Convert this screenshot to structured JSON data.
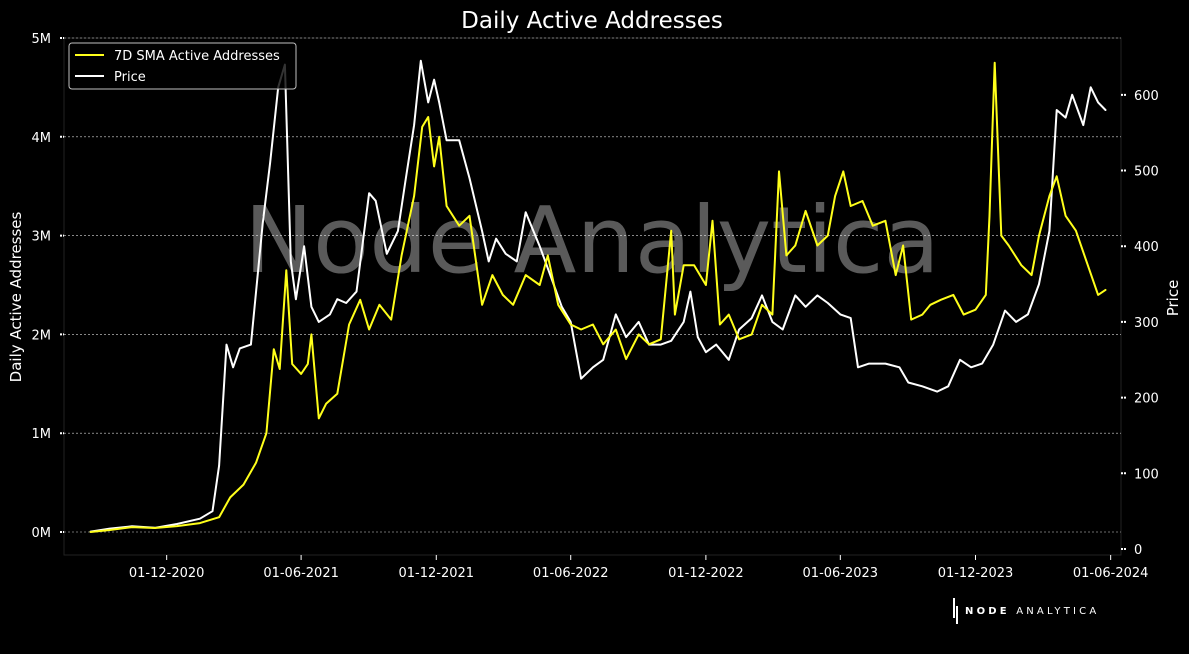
{
  "chart_data": {
    "type": "line",
    "title": "Daily Active Addresses",
    "ylabel": "Daily Active Addresses",
    "y2label": "Price",
    "watermark": "Node Analytica",
    "brand": {
      "bold": "NODE",
      "light": "ANALYTICA"
    },
    "xticks": [
      "01-12-2020",
      "01-06-2021",
      "01-12-2021",
      "01-06-2022",
      "01-12-2022",
      "01-06-2023",
      "01-12-2023",
      "01-06-2024"
    ],
    "yticks": [
      "0M",
      "1M",
      "2M",
      "3M",
      "4M",
      "5M"
    ],
    "y2ticks": [
      "0",
      "100",
      "200",
      "300",
      "400",
      "500",
      "600"
    ],
    "ylim": [
      0,
      5000000
    ],
    "y2lim": [
      0,
      650
    ],
    "xlim": [
      "2020-07-15",
      "2024-06-15"
    ],
    "grid": true,
    "legend": "top-left",
    "colors": {
      "series_addresses": "#ffff1a",
      "series_price": "#ffffff",
      "background": "#000000",
      "grid": "#ffffff"
    },
    "series": [
      {
        "name": "7D SMA Active Addresses",
        "axis": "left",
        "color": "#ffff1a",
        "points": [
          [
            "2020-08-20",
            0
          ],
          [
            "2020-09-15",
            20000
          ],
          [
            "2020-10-15",
            50000
          ],
          [
            "2020-11-15",
            40000
          ],
          [
            "2020-12-15",
            60000
          ],
          [
            "2021-01-15",
            90000
          ],
          [
            "2021-02-10",
            150000
          ],
          [
            "2021-02-25",
            350000
          ],
          [
            "2021-03-15",
            480000
          ],
          [
            "2021-04-01",
            700000
          ],
          [
            "2021-04-15",
            1000000
          ],
          [
            "2021-04-25",
            1850000
          ],
          [
            "2021-05-03",
            1650000
          ],
          [
            "2021-05-12",
            2650000
          ],
          [
            "2021-05-20",
            1700000
          ],
          [
            "2021-06-01",
            1600000
          ],
          [
            "2021-06-10",
            1700000
          ],
          [
            "2021-06-15",
            2000000
          ],
          [
            "2021-06-25",
            1150000
          ],
          [
            "2021-07-05",
            1300000
          ],
          [
            "2021-07-20",
            1400000
          ],
          [
            "2021-08-05",
            2100000
          ],
          [
            "2021-08-20",
            2350000
          ],
          [
            "2021-09-01",
            2050000
          ],
          [
            "2021-09-15",
            2300000
          ],
          [
            "2021-10-01",
            2150000
          ],
          [
            "2021-10-15",
            2800000
          ],
          [
            "2021-11-01",
            3400000
          ],
          [
            "2021-11-12",
            4100000
          ],
          [
            "2021-11-20",
            4200000
          ],
          [
            "2021-11-28",
            3700000
          ],
          [
            "2021-12-05",
            4000000
          ],
          [
            "2021-12-15",
            3300000
          ],
          [
            "2022-01-01",
            3100000
          ],
          [
            "2022-01-15",
            3200000
          ],
          [
            "2022-02-01",
            2300000
          ],
          [
            "2022-02-15",
            2600000
          ],
          [
            "2022-03-01",
            2400000
          ],
          [
            "2022-03-15",
            2300000
          ],
          [
            "2022-04-01",
            2600000
          ],
          [
            "2022-04-20",
            2500000
          ],
          [
            "2022-05-01",
            2800000
          ],
          [
            "2022-05-15",
            2300000
          ],
          [
            "2022-06-01",
            2100000
          ],
          [
            "2022-06-15",
            2050000
          ],
          [
            "2022-07-01",
            2100000
          ],
          [
            "2022-07-15",
            1900000
          ],
          [
            "2022-08-01",
            2050000
          ],
          [
            "2022-08-15",
            1750000
          ],
          [
            "2022-09-01",
            2000000
          ],
          [
            "2022-09-15",
            1900000
          ],
          [
            "2022-10-01",
            1950000
          ],
          [
            "2022-10-15",
            3050000
          ],
          [
            "2022-10-20",
            2200000
          ],
          [
            "2022-11-01",
            2700000
          ],
          [
            "2022-11-15",
            2700000
          ],
          [
            "2022-12-01",
            2500000
          ],
          [
            "2022-12-10",
            3150000
          ],
          [
            "2022-12-20",
            2100000
          ],
          [
            "2023-01-01",
            2200000
          ],
          [
            "2023-01-15",
            1950000
          ],
          [
            "2023-02-01",
            2000000
          ],
          [
            "2023-02-15",
            2300000
          ],
          [
            "2023-03-01",
            2200000
          ],
          [
            "2023-03-10",
            3650000
          ],
          [
            "2023-03-20",
            2800000
          ],
          [
            "2023-04-01",
            2900000
          ],
          [
            "2023-04-15",
            3250000
          ],
          [
            "2023-05-01",
            2900000
          ],
          [
            "2023-05-15",
            3000000
          ],
          [
            "2023-05-25",
            3400000
          ],
          [
            "2023-06-05",
            3650000
          ],
          [
            "2023-06-15",
            3300000
          ],
          [
            "2023-07-01",
            3350000
          ],
          [
            "2023-07-15",
            3100000
          ],
          [
            "2023-08-01",
            3150000
          ],
          [
            "2023-08-15",
            2600000
          ],
          [
            "2023-08-25",
            2900000
          ],
          [
            "2023-09-05",
            2150000
          ],
          [
            "2023-09-20",
            2200000
          ],
          [
            "2023-10-01",
            2300000
          ],
          [
            "2023-10-15",
            2350000
          ],
          [
            "2023-11-01",
            2400000
          ],
          [
            "2023-11-15",
            2200000
          ],
          [
            "2023-12-01",
            2250000
          ],
          [
            "2023-12-15",
            2400000
          ],
          [
            "2023-12-20",
            3200000
          ],
          [
            "2023-12-27",
            4750000
          ],
          [
            "2024-01-05",
            3000000
          ],
          [
            "2024-01-15",
            2900000
          ],
          [
            "2024-02-01",
            2700000
          ],
          [
            "2024-02-15",
            2600000
          ],
          [
            "2024-02-25",
            3000000
          ],
          [
            "2024-03-10",
            3400000
          ],
          [
            "2024-03-20",
            3600000
          ],
          [
            "2024-04-01",
            3200000
          ],
          [
            "2024-04-15",
            3050000
          ],
          [
            "2024-05-01",
            2700000
          ],
          [
            "2024-05-15",
            2400000
          ],
          [
            "2024-05-25",
            2450000
          ]
        ]
      },
      {
        "name": "Price",
        "axis": "right",
        "color": "#ffffff",
        "points": [
          [
            "2020-08-20",
            23
          ],
          [
            "2020-09-15",
            27
          ],
          [
            "2020-10-15",
            30
          ],
          [
            "2020-11-15",
            28
          ],
          [
            "2020-12-15",
            33
          ],
          [
            "2021-01-15",
            40
          ],
          [
            "2021-02-01",
            50
          ],
          [
            "2021-02-10",
            110
          ],
          [
            "2021-02-20",
            270
          ],
          [
            "2021-03-01",
            240
          ],
          [
            "2021-03-10",
            265
          ],
          [
            "2021-03-25",
            270
          ],
          [
            "2021-04-10",
            430
          ],
          [
            "2021-04-20",
            510
          ],
          [
            "2021-05-01",
            610
          ],
          [
            "2021-05-10",
            640
          ],
          [
            "2021-05-18",
            380
          ],
          [
            "2021-05-25",
            330
          ],
          [
            "2021-06-05",
            400
          ],
          [
            "2021-06-15",
            320
          ],
          [
            "2021-06-25",
            300
          ],
          [
            "2021-07-10",
            310
          ],
          [
            "2021-07-20",
            330
          ],
          [
            "2021-08-01",
            325
          ],
          [
            "2021-08-15",
            340
          ],
          [
            "2021-09-01",
            470
          ],
          [
            "2021-09-10",
            460
          ],
          [
            "2021-09-25",
            390
          ],
          [
            "2021-10-10",
            420
          ],
          [
            "2021-10-20",
            485
          ],
          [
            "2021-11-01",
            560
          ],
          [
            "2021-11-10",
            645
          ],
          [
            "2021-11-20",
            590
          ],
          [
            "2021-11-28",
            620
          ],
          [
            "2021-12-05",
            590
          ],
          [
            "2021-12-15",
            540
          ],
          [
            "2022-01-01",
            540
          ],
          [
            "2022-01-15",
            490
          ],
          [
            "2022-02-01",
            420
          ],
          [
            "2022-02-10",
            380
          ],
          [
            "2022-02-20",
            410
          ],
          [
            "2022-03-05",
            390
          ],
          [
            "2022-03-20",
            380
          ],
          [
            "2022-04-01",
            445
          ],
          [
            "2022-04-20",
            400
          ],
          [
            "2022-05-05",
            360
          ],
          [
            "2022-05-20",
            320
          ],
          [
            "2022-06-01",
            300
          ],
          [
            "2022-06-15",
            225
          ],
          [
            "2022-07-01",
            240
          ],
          [
            "2022-07-15",
            250
          ],
          [
            "2022-08-01",
            310
          ],
          [
            "2022-08-15",
            280
          ],
          [
            "2022-09-01",
            300
          ],
          [
            "2022-09-15",
            270
          ],
          [
            "2022-10-01",
            270
          ],
          [
            "2022-10-15",
            275
          ],
          [
            "2022-11-01",
            300
          ],
          [
            "2022-11-10",
            340
          ],
          [
            "2022-11-20",
            280
          ],
          [
            "2022-12-01",
            260
          ],
          [
            "2022-12-15",
            270
          ],
          [
            "2023-01-01",
            250
          ],
          [
            "2023-01-15",
            290
          ],
          [
            "2023-02-01",
            305
          ],
          [
            "2023-02-15",
            335
          ],
          [
            "2023-03-01",
            300
          ],
          [
            "2023-03-15",
            290
          ],
          [
            "2023-04-01",
            335
          ],
          [
            "2023-04-15",
            320
          ],
          [
            "2023-05-01",
            335
          ],
          [
            "2023-05-15",
            325
          ],
          [
            "2023-06-01",
            310
          ],
          [
            "2023-06-15",
            305
          ],
          [
            "2023-06-25",
            240
          ],
          [
            "2023-07-10",
            245
          ],
          [
            "2023-08-01",
            245
          ],
          [
            "2023-08-20",
            240
          ],
          [
            "2023-09-01",
            220
          ],
          [
            "2023-09-20",
            215
          ],
          [
            "2023-10-10",
            208
          ],
          [
            "2023-10-25",
            215
          ],
          [
            "2023-11-10",
            250
          ],
          [
            "2023-11-25",
            240
          ],
          [
            "2023-12-10",
            245
          ],
          [
            "2023-12-25",
            270
          ],
          [
            "2024-01-10",
            315
          ],
          [
            "2024-01-25",
            300
          ],
          [
            "2024-02-10",
            310
          ],
          [
            "2024-02-25",
            350
          ],
          [
            "2024-03-10",
            420
          ],
          [
            "2024-03-20",
            580
          ],
          [
            "2024-04-01",
            570
          ],
          [
            "2024-04-10",
            600
          ],
          [
            "2024-04-25",
            560
          ],
          [
            "2024-05-05",
            610
          ],
          [
            "2024-05-15",
            590
          ],
          [
            "2024-05-25",
            580
          ]
        ]
      }
    ]
  }
}
